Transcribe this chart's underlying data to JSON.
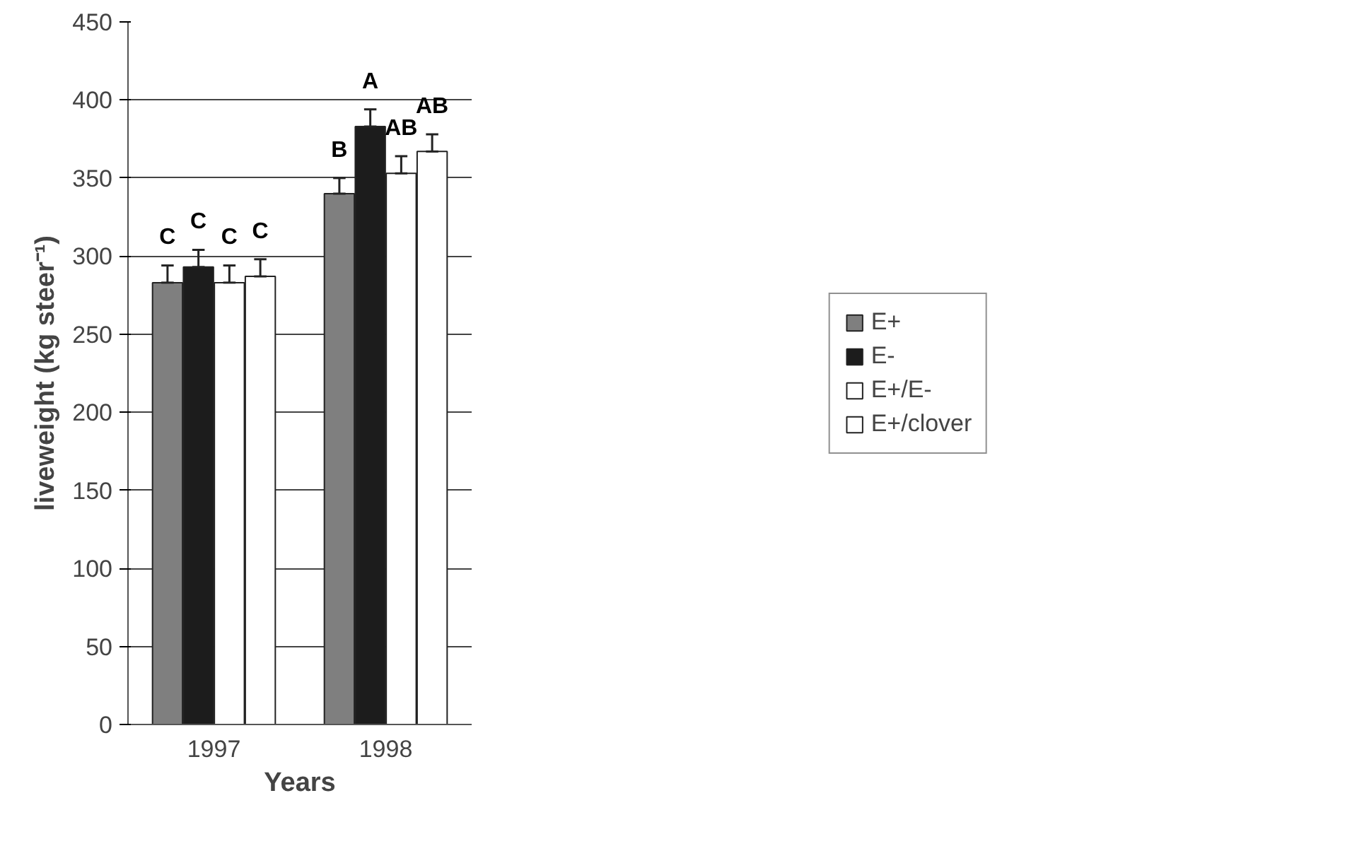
{
  "chart_data": {
    "type": "bar",
    "xlabel": "Years",
    "ylabel": "liveweight (kg steer⁻¹)",
    "categories": [
      "1997",
      "1998"
    ],
    "ylim": [
      0,
      450
    ],
    "yticks": [
      0,
      50,
      100,
      150,
      200,
      250,
      300,
      350,
      400,
      450
    ],
    "grid": "y",
    "legend": "right",
    "series": [
      {
        "name": "E+",
        "color": "#7f7f7f",
        "values": [
          283,
          340
        ],
        "errors": [
          [
            283,
            294
          ],
          [
            340,
            350
          ]
        ],
        "value_labels": [
          "C",
          "B"
        ]
      },
      {
        "name": "E-",
        "color": "#1c1c1c",
        "values": [
          293,
          383
        ],
        "errors": [
          [
            293,
            304
          ],
          [
            383,
            394
          ]
        ],
        "value_labels": [
          "C",
          "A"
        ]
      },
      {
        "name": "E+/E-",
        "color": "#ffffff",
        "values": [
          283,
          353
        ],
        "errors": [
          [
            283,
            294
          ],
          [
            353,
            364
          ]
        ],
        "value_labels": [
          "C",
          "AB"
        ]
      },
      {
        "name": "E+/clover",
        "color": "#ffffff",
        "values": [
          287,
          367
        ],
        "errors": [
          [
            287,
            298
          ],
          [
            367,
            378
          ]
        ],
        "value_labels": [
          "C",
          "AB"
        ]
      }
    ]
  }
}
